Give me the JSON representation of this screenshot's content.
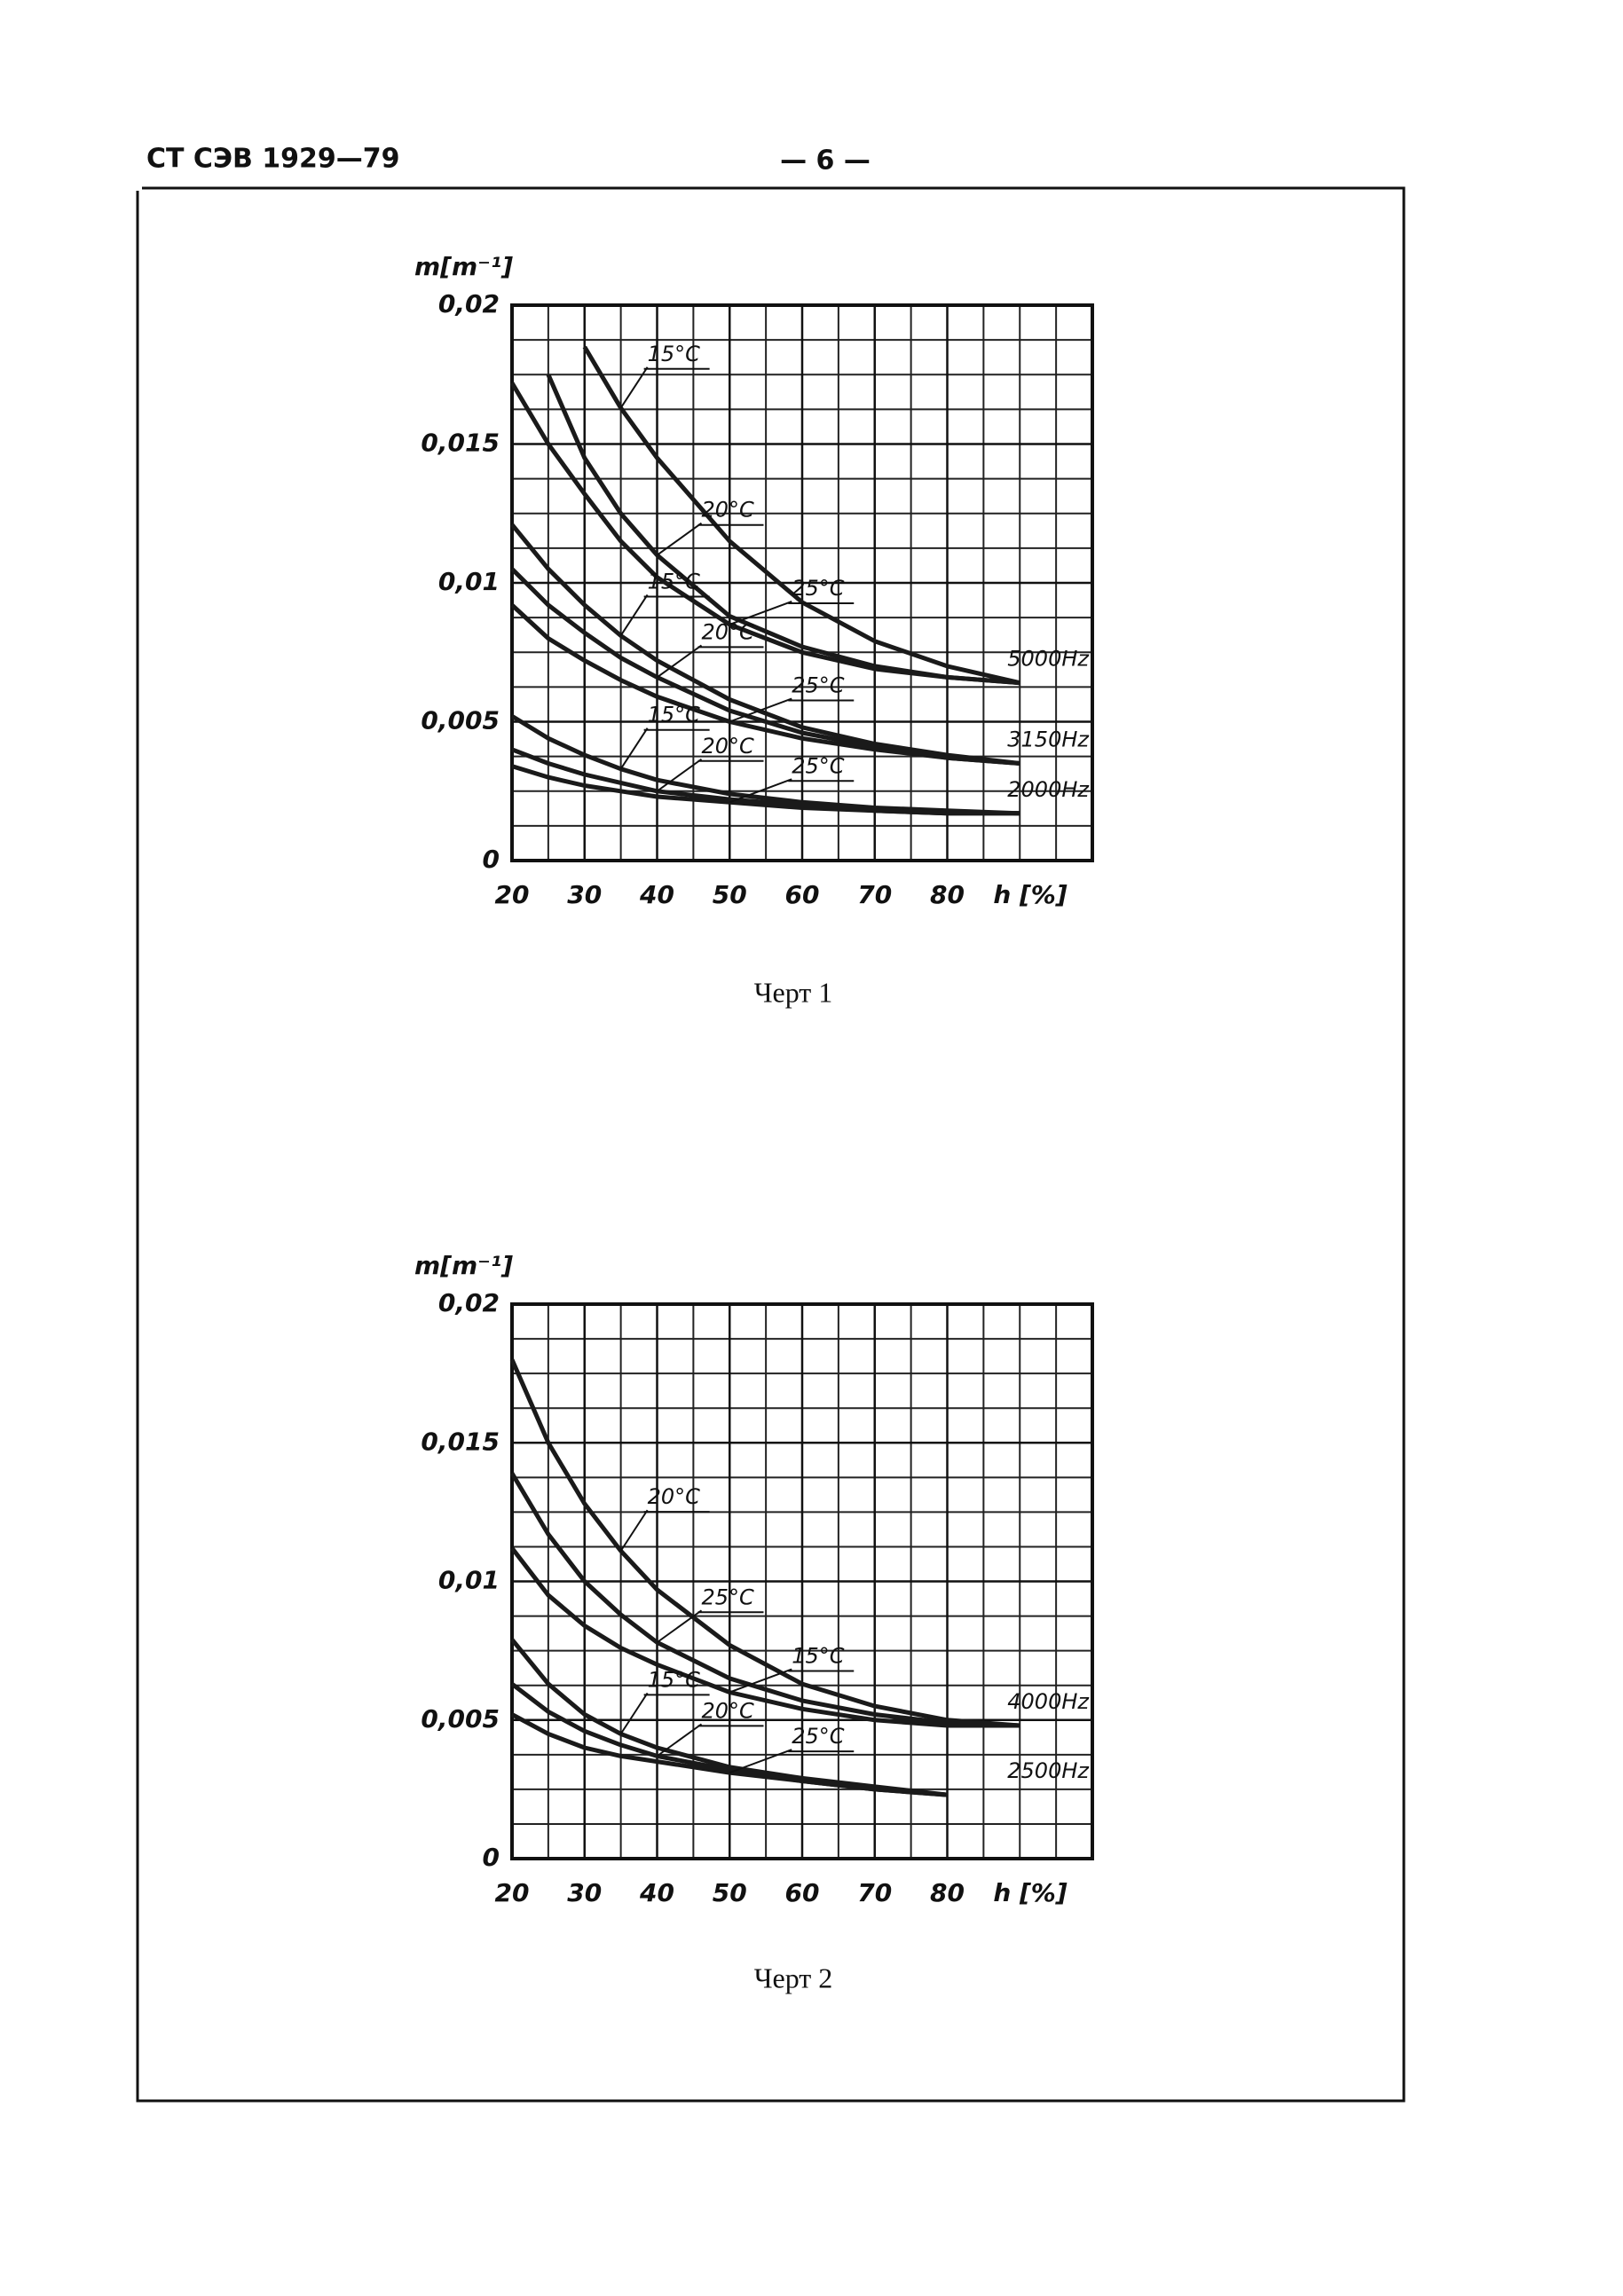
{
  "header": {
    "left": "СТ СЭВ 1929—79",
    "page": "— 6 —"
  },
  "chart_data": [
    {
      "type": "line",
      "ylabel": "m[m⁻¹]",
      "xlabel": "h [%]",
      "caption": "Черт 1",
      "xlim": [
        20,
        100
      ],
      "ylim": [
        0,
        0.02
      ],
      "grid": true,
      "color": "#1a1a1a",
      "xticks": [
        20,
        30,
        40,
        50,
        60,
        70,
        80
      ],
      "yticks": [
        0,
        {
          "value": 0.005,
          "label": "0,005"
        },
        {
          "value": 0.01,
          "label": "0,01"
        },
        {
          "value": 0.015,
          "label": "0,015"
        },
        {
          "value": 0.02,
          "label": "0,02"
        }
      ],
      "x": [
        20,
        25,
        30,
        35,
        40,
        50,
        60,
        70,
        80,
        90
      ],
      "groups": [
        {
          "label": "5000Hz",
          "series": [
            {
              "name": "15°C",
              "values": [
                null,
                null,
                0.0185,
                0.0163,
                0.0145,
                0.0115,
                0.0093,
                0.0079,
                0.007,
                0.0064
              ]
            },
            {
              "name": "20°C",
              "values": [
                null,
                0.0175,
                0.0145,
                0.0125,
                0.011,
                0.0088,
                0.0077,
                0.007,
                0.0066,
                0.0064
              ]
            },
            {
              "name": "25°C",
              "values": [
                0.0172,
                0.015,
                0.0132,
                0.0115,
                0.0102,
                0.0085,
                0.0075,
                0.0069,
                0.0066,
                0.0064
              ]
            }
          ]
        },
        {
          "label": "3150Hz",
          "series": [
            {
              "name": "15°C",
              "values": [
                0.0121,
                0.0105,
                0.0092,
                0.0081,
                0.0072,
                0.0058,
                0.0048,
                0.0042,
                0.0038,
                0.0035
              ]
            },
            {
              "name": "20°C",
              "values": [
                0.0105,
                0.0092,
                0.0082,
                0.0073,
                0.0066,
                0.0054,
                0.0046,
                0.0041,
                0.0037,
                0.0035
              ]
            },
            {
              "name": "25°C",
              "values": [
                0.0092,
                0.008,
                0.0072,
                0.0065,
                0.0059,
                0.005,
                0.0044,
                0.004,
                0.0037,
                0.0035
              ]
            }
          ]
        },
        {
          "label": "2000Hz",
          "series": [
            {
              "name": "15°C",
              "values": [
                0.0052,
                0.0044,
                0.0038,
                0.0033,
                0.0029,
                0.0024,
                0.0021,
                0.0019,
                0.0018,
                0.0017
              ]
            },
            {
              "name": "20°C",
              "values": [
                0.004,
                0.0035,
                0.0031,
                0.0028,
                0.0025,
                0.0022,
                0.002,
                0.0018,
                0.0017,
                0.0017
              ]
            },
            {
              "name": "25°C",
              "values": [
                0.0034,
                0.003,
                0.0027,
                0.0025,
                0.0023,
                0.0021,
                0.0019,
                0.0018,
                0.0017,
                0.0017
              ]
            }
          ]
        }
      ]
    },
    {
      "type": "line",
      "ylabel": "m[m⁻¹]",
      "xlabel": "h [%]",
      "caption": "Черт 2",
      "xlim": [
        20,
        100
      ],
      "ylim": [
        0,
        0.02
      ],
      "grid": true,
      "color": "#1a1a1a",
      "xticks": [
        20,
        30,
        40,
        50,
        60,
        70,
        80
      ],
      "yticks": [
        0,
        {
          "value": 0.005,
          "label": "0,005"
        },
        {
          "value": 0.01,
          "label": "0,01"
        },
        {
          "value": 0.015,
          "label": "0,015"
        },
        {
          "value": 0.02,
          "label": "0,02"
        }
      ],
      "x": [
        20,
        25,
        30,
        35,
        40,
        50,
        60,
        70,
        80,
        90
      ],
      "groups": [
        {
          "label": "4000Hz",
          "series": [
            {
              "name": "20°C",
              "values": [
                0.018,
                0.015,
                0.0128,
                0.0111,
                0.0097,
                0.0077,
                0.0063,
                0.0055,
                0.005,
                0.0048
              ]
            },
            {
              "name": "25°C",
              "values": [
                0.0139,
                0.0117,
                0.01,
                0.0088,
                0.0078,
                0.0065,
                0.0057,
                0.0052,
                0.0049,
                0.0048
              ]
            },
            {
              "name": "15°C",
              "values": [
                0.0112,
                0.0095,
                0.0084,
                0.0076,
                0.007,
                0.006,
                0.0054,
                0.005,
                0.0048,
                0.0048
              ]
            }
          ]
        },
        {
          "label": "2500Hz",
          "series": [
            {
              "name": "15°C",
              "values": [
                0.0079,
                0.0063,
                0.0052,
                0.0045,
                0.004,
                0.0033,
                0.0029,
                0.0026,
                0.0023,
                null
              ]
            },
            {
              "name": "20°C",
              "values": [
                0.0063,
                0.0053,
                0.0046,
                0.0041,
                0.0037,
                0.0032,
                0.0028,
                0.0025,
                0.0023,
                null
              ]
            },
            {
              "name": "25°C",
              "values": [
                0.0052,
                0.0045,
                0.004,
                0.0037,
                0.0035,
                0.0031,
                0.0028,
                0.0025,
                0.0023,
                null
              ]
            }
          ]
        }
      ]
    }
  ]
}
